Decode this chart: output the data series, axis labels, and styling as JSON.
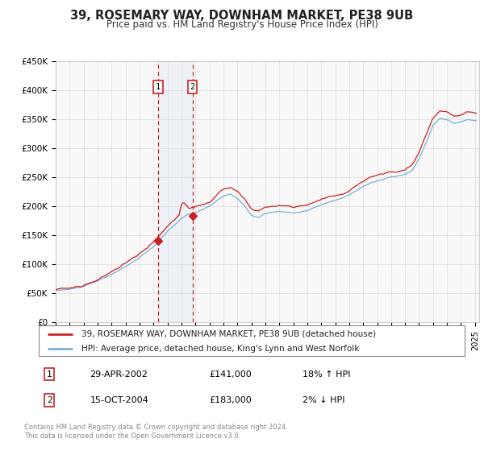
{
  "title": "39, ROSEMARY WAY, DOWNHAM MARKET, PE38 9UB",
  "subtitle": "Price paid vs. HM Land Registry's House Price Index (HPI)",
  "ylabel_ticks": [
    "£0",
    "£50K",
    "£100K",
    "£150K",
    "£200K",
    "£250K",
    "£300K",
    "£350K",
    "£400K",
    "£450K"
  ],
  "ylim": [
    0,
    450000
  ],
  "xlim_start": 1995.0,
  "xlim_end": 2025.3,
  "legend_line1": "39, ROSEMARY WAY, DOWNHAM MARKET, PE38 9UB (detached house)",
  "legend_line2": "HPI: Average price, detached house, King's Lynn and West Norfolk",
  "sale1_date": "29-APR-2002",
  "sale1_price": "£141,000",
  "sale1_hpi": "18% ↑ HPI",
  "sale1_x": 2002.33,
  "sale1_price_val": 141000,
  "sale2_date": "15-OCT-2004",
  "sale2_price": "£183,000",
  "sale2_hpi": "2% ↓ HPI",
  "sale2_x": 2004.79,
  "sale2_price_val": 183000,
  "line_color_property": "#cc2222",
  "line_color_hpi": "#7ab0d8",
  "grid_color": "#dddddd",
  "background_color": "#ffffff",
  "plot_bg_color": "#f8f8f8",
  "footer_text": "Contains HM Land Registry data © Crown copyright and database right 2024.\nThis data is licensed under the Open Government Licence v3.0."
}
